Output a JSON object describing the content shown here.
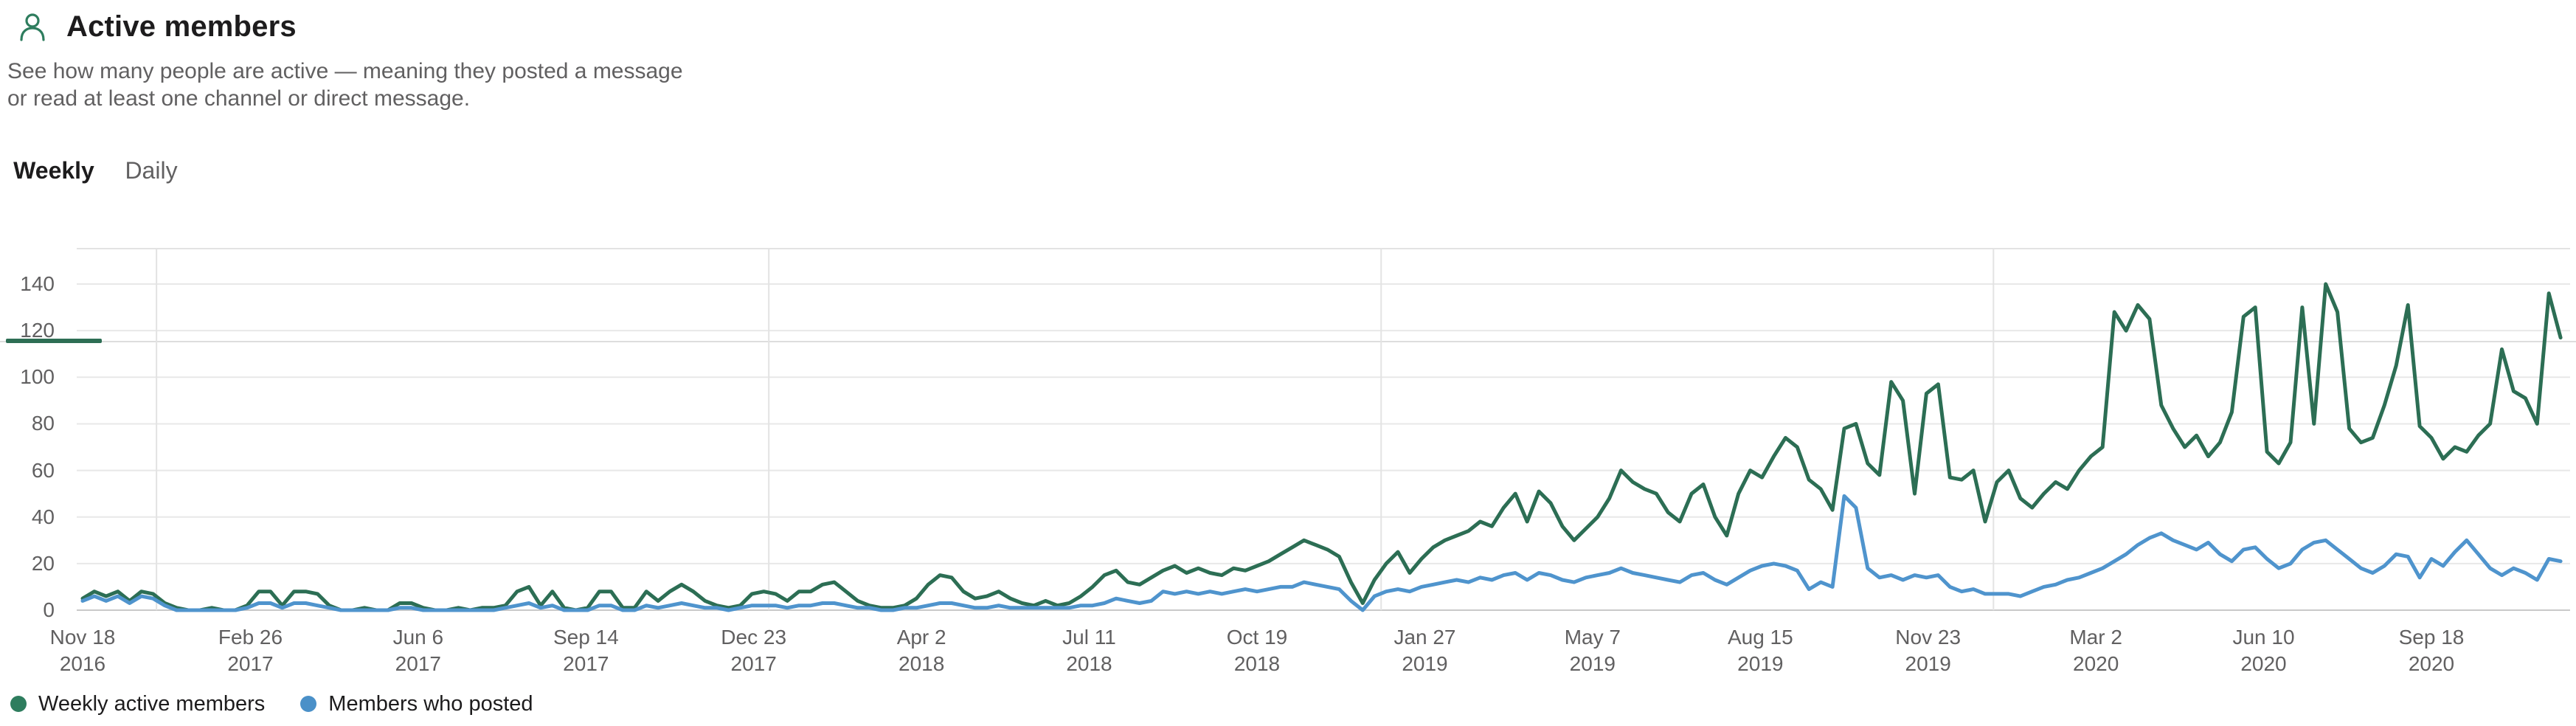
{
  "header": {
    "title": "Active members",
    "description_line1": "See how many people are active — meaning they posted a message",
    "description_line2": "or read at least one channel or direct message."
  },
  "tabs": [
    {
      "label": "Weekly",
      "active": true
    },
    {
      "label": "Daily",
      "active": false
    }
  ],
  "legend": [
    {
      "label": "Weekly active members",
      "color": "#2e7d5e"
    },
    {
      "label": "Members who posted",
      "color": "#4a90c8"
    }
  ],
  "colors": {
    "green_line": "#2c6e54",
    "blue_line": "#4f94cd",
    "grid": "#e8e8e8",
    "axis_baseline": "#c9c9c9",
    "tab_underline": "#2d6e54",
    "icon_green": "#2e7d5e"
  },
  "chart_data": {
    "type": "line",
    "title": "Active members — Weekly",
    "xlabel": "",
    "ylabel": "",
    "ylim": [
      0,
      155
    ],
    "grid": true,
    "legend_position": "bottom-left",
    "y_ticks": [
      0,
      20,
      40,
      60,
      80,
      100,
      120,
      140
    ],
    "x_ticks": [
      {
        "date": "Nov 18",
        "year": "2016",
        "week": 0
      },
      {
        "date": "Feb 26",
        "year": "2017",
        "week": 14.29
      },
      {
        "date": "Jun 6",
        "year": "2017",
        "week": 28.57
      },
      {
        "date": "Sep 14",
        "year": "2017",
        "week": 42.86
      },
      {
        "date": "Dec 23",
        "year": "2017",
        "week": 57.14
      },
      {
        "date": "Apr 2",
        "year": "2018",
        "week": 71.43
      },
      {
        "date": "Jul 11",
        "year": "2018",
        "week": 85.71
      },
      {
        "date": "Oct 19",
        "year": "2018",
        "week": 100
      },
      {
        "date": "Jan 27",
        "year": "2019",
        "week": 114.29
      },
      {
        "date": "May 7",
        "year": "2019",
        "week": 128.57
      },
      {
        "date": "Aug 15",
        "year": "2019",
        "week": 142.86
      },
      {
        "date": "Nov 23",
        "year": "2019",
        "week": 157.14
      },
      {
        "date": "Mar 2",
        "year": "2020",
        "week": 171.43
      },
      {
        "date": "Jun 10",
        "year": "2020",
        "week": 185.71
      },
      {
        "date": "Sep 18",
        "year": "2020",
        "week": 200
      }
    ],
    "year_gridline_weeks": [
      6.29,
      58.43,
      110.57,
      162.71
    ],
    "x_unit": "week (one data point per week, Nov 18 2016 – Dec 4 2020)",
    "series": [
      {
        "name": "Weekly active members",
        "color": "#2c6e54",
        "values": [
          5,
          8,
          6,
          8,
          4,
          8,
          7,
          3,
          1,
          0,
          0,
          1,
          0,
          0,
          2,
          8,
          8,
          2,
          8,
          8,
          7,
          2,
          0,
          0,
          1,
          0,
          0,
          3,
          3,
          1,
          0,
          0,
          1,
          0,
          1,
          1,
          2,
          8,
          10,
          2,
          8,
          1,
          0,
          1,
          8,
          8,
          1,
          1,
          8,
          4,
          8,
          11,
          8,
          4,
          2,
          1,
          2,
          7,
          8,
          7,
          4,
          8,
          8,
          11,
          12,
          8,
          4,
          2,
          1,
          1,
          2,
          5,
          11,
          15,
          14,
          8,
          5,
          6,
          8,
          5,
          3,
          2,
          4,
          2,
          3,
          6,
          10,
          15,
          17,
          12,
          11,
          14,
          17,
          19,
          16,
          18,
          16,
          15,
          18,
          17,
          19,
          21,
          24,
          27,
          30,
          28,
          26,
          23,
          12,
          3,
          13,
          20,
          25,
          16,
          22,
          27,
          30,
          32,
          34,
          38,
          36,
          44,
          50,
          38,
          51,
          46,
          36,
          30,
          35,
          40,
          48,
          60,
          55,
          52,
          50,
          42,
          38,
          50,
          54,
          40,
          32,
          50,
          60,
          57,
          66,
          74,
          70,
          56,
          52,
          43,
          78,
          80,
          63,
          58,
          98,
          90,
          50,
          93,
          97,
          57,
          56,
          60,
          38,
          55,
          60,
          48,
          44,
          50,
          55,
          52,
          60,
          66,
          70,
          128,
          120,
          131,
          125,
          88,
          78,
          70,
          75,
          66,
          72,
          85,
          126,
          130,
          68,
          63,
          72,
          130,
          80,
          140,
          128,
          78,
          72,
          74,
          88,
          105,
          131,
          79,
          74,
          65,
          70,
          68,
          75,
          80,
          112,
          94,
          91,
          80,
          136,
          117
        ]
      },
      {
        "name": "Members who posted",
        "color": "#4f94cd",
        "values": [
          4,
          6,
          4,
          6,
          3,
          6,
          5,
          2,
          0,
          0,
          0,
          0,
          0,
          0,
          1,
          3,
          3,
          1,
          3,
          3,
          2,
          1,
          0,
          0,
          0,
          0,
          0,
          1,
          1,
          0,
          0,
          0,
          0,
          0,
          0,
          0,
          1,
          2,
          3,
          1,
          2,
          0,
          0,
          0,
          2,
          2,
          0,
          0,
          2,
          1,
          2,
          3,
          2,
          1,
          1,
          0,
          1,
          2,
          2,
          2,
          1,
          2,
          2,
          3,
          3,
          2,
          1,
          1,
          0,
          0,
          1,
          1,
          2,
          3,
          3,
          2,
          1,
          1,
          2,
          1,
          1,
          1,
          1,
          1,
          1,
          2,
          2,
          3,
          5,
          4,
          3,
          4,
          8,
          7,
          8,
          7,
          8,
          7,
          8,
          9,
          8,
          9,
          10,
          10,
          12,
          11,
          10,
          9,
          4,
          0,
          6,
          8,
          9,
          8,
          10,
          11,
          12,
          13,
          12,
          14,
          13,
          15,
          16,
          13,
          16,
          15,
          13,
          12,
          14,
          15,
          16,
          18,
          16,
          15,
          14,
          13,
          12,
          15,
          16,
          13,
          11,
          14,
          17,
          19,
          20,
          19,
          17,
          9,
          12,
          10,
          49,
          44,
          18,
          14,
          15,
          13,
          15,
          14,
          15,
          10,
          8,
          9,
          7,
          7,
          7,
          6,
          8,
          10,
          11,
          13,
          14,
          16,
          18,
          21,
          24,
          28,
          31,
          33,
          30,
          28,
          26,
          29,
          24,
          21,
          26,
          27,
          22,
          18,
          20,
          26,
          29,
          30,
          26,
          22,
          18,
          16,
          19,
          24,
          23,
          14,
          22,
          19,
          25,
          30,
          24,
          18,
          15,
          18,
          16,
          13,
          22,
          21
        ]
      }
    ]
  }
}
